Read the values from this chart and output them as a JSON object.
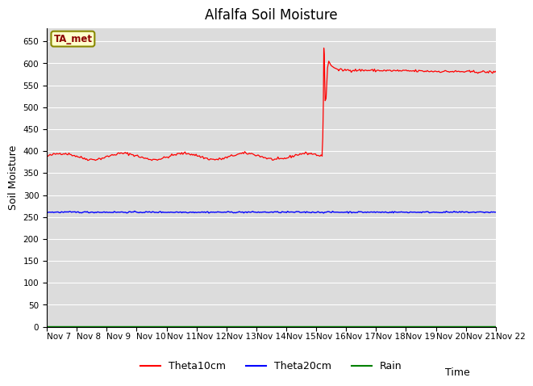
{
  "title": "Alfalfa Soil Moisture",
  "xlabel": "Time",
  "ylabel": "Soil Moisture",
  "legend_labels": [
    "Theta10cm",
    "Theta20cm",
    "Rain"
  ],
  "legend_colors": [
    "red",
    "blue",
    "green"
  ],
  "annotation_text": "TA_met",
  "annotation_bg": "#FFFFCC",
  "annotation_border": "#888800",
  "ylim": [
    0,
    680
  ],
  "yticks": [
    0,
    50,
    100,
    150,
    200,
    250,
    300,
    350,
    400,
    450,
    500,
    550,
    600,
    650
  ],
  "xtick_labels": [
    "Nov 7",
    "Nov 8",
    "Nov 9",
    "Nov 10",
    "Nov 11",
    "Nov 12",
    "Nov 13",
    "Nov 14",
    "Nov 15",
    "Nov 16",
    "Nov 17",
    "Nov 18",
    "Nov 19",
    "Nov 20",
    "Nov 21",
    "Nov 22"
  ],
  "bg_color": "#DCDCDC",
  "fig_color": "#FFFFFF",
  "title_fontsize": 12,
  "axis_label_fontsize": 9,
  "tick_fontsize": 7.5
}
